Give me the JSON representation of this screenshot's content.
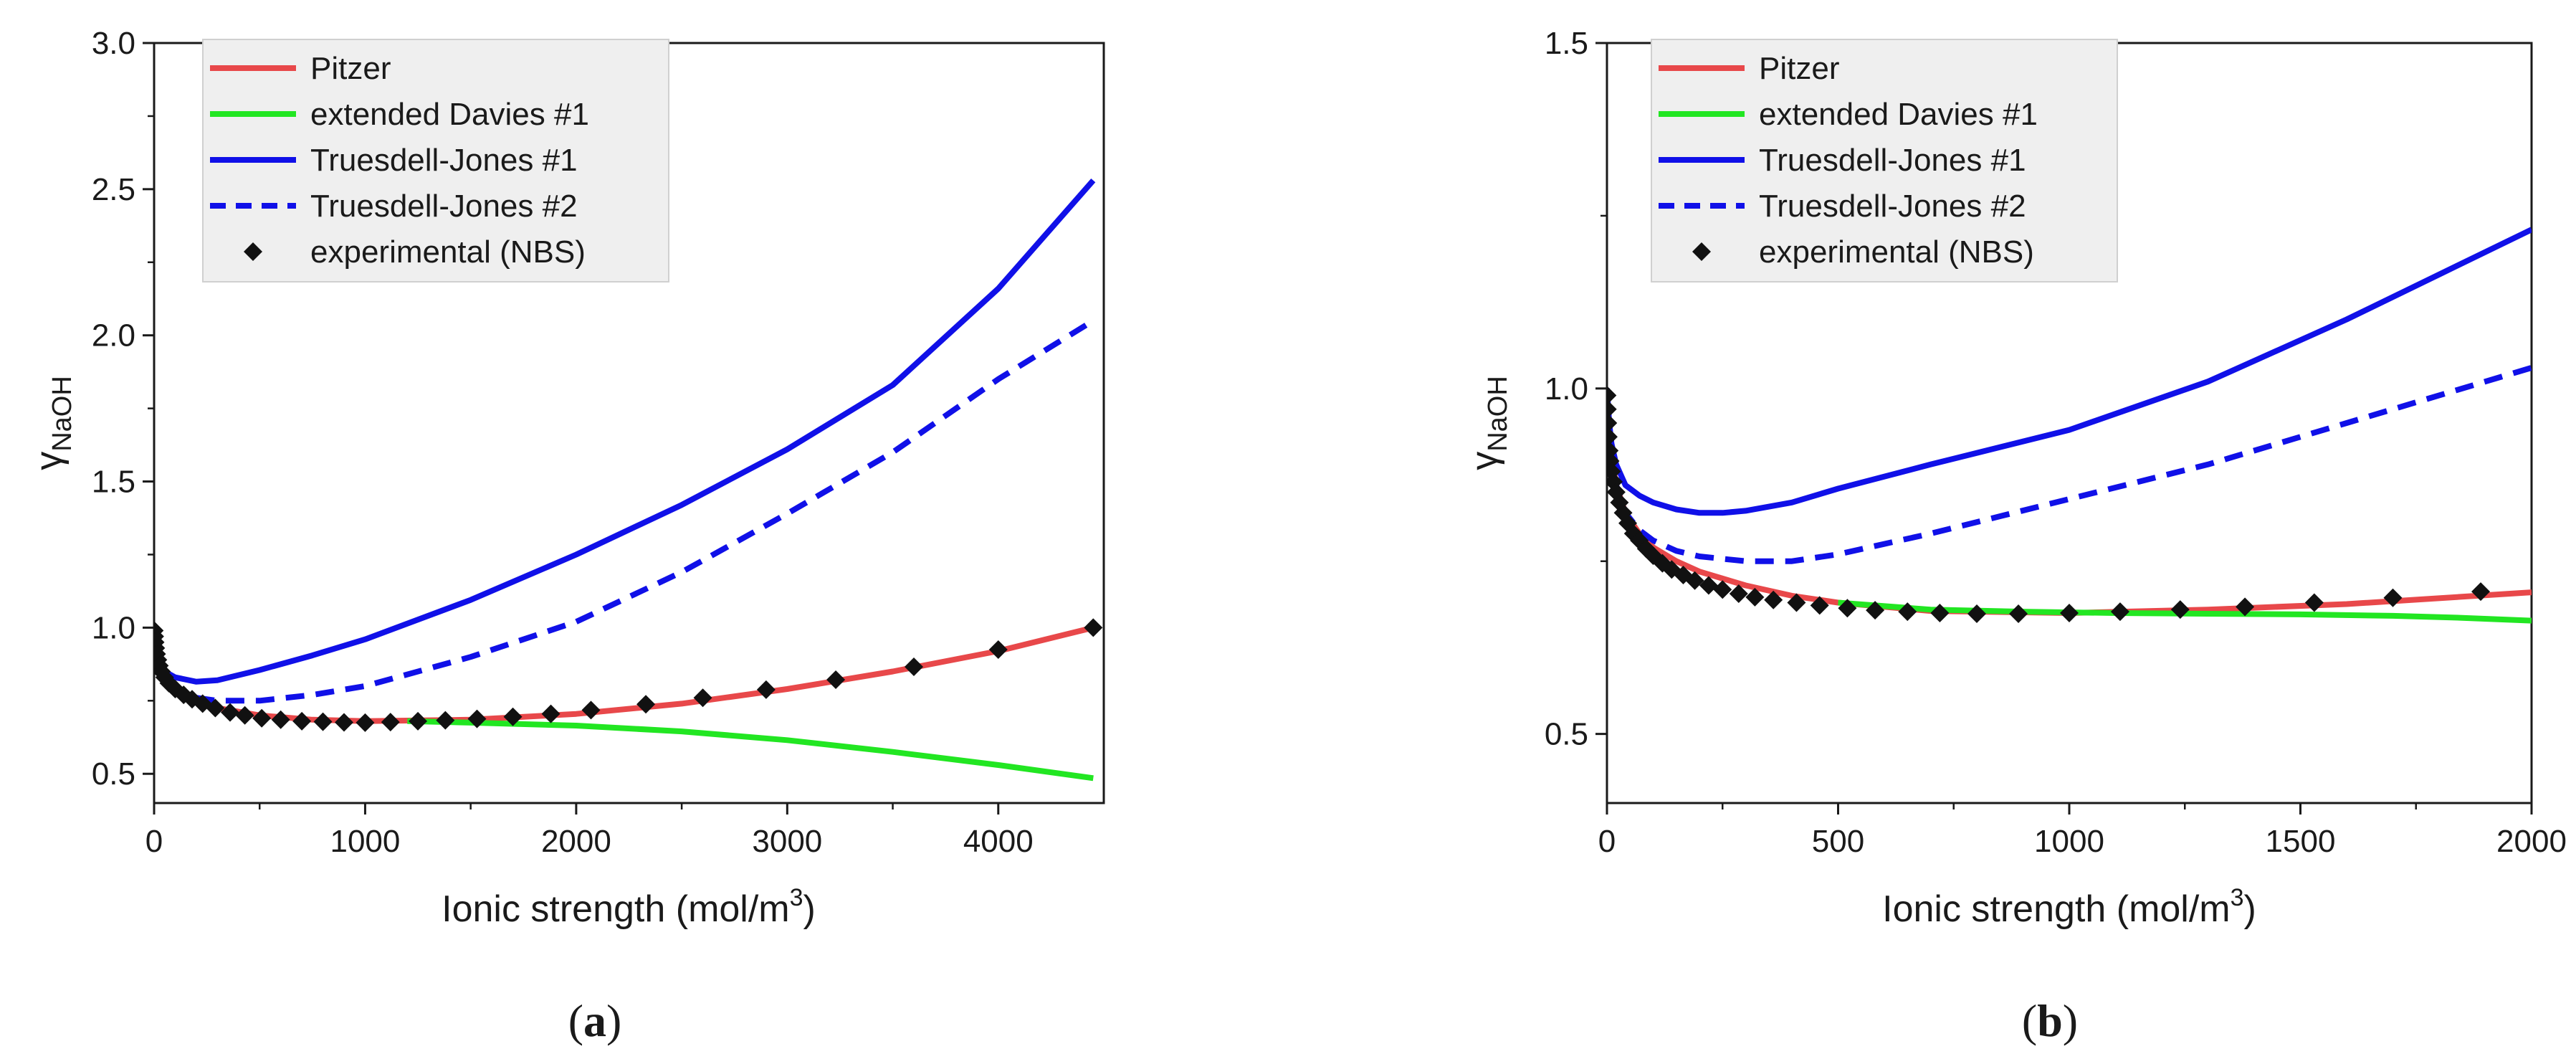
{
  "chart_data": [
    {
      "type": "line",
      "panel_label": "a",
      "xlabel": "Ionic strength (mol/m³)",
      "xlabel_main": "Ionic strength (mol/m",
      "xlabel_sup": "3",
      "xlabel_end": ")",
      "ylabel_main": "γ",
      "ylabel_sub": "NaOH",
      "xlim": [
        0,
        4500
      ],
      "ylim": [
        0.4,
        3.0
      ],
      "xticks": [
        "0",
        "1000",
        "2000",
        "3000",
        "4000"
      ],
      "xtick_values": [
        0,
        1000,
        2000,
        3000,
        4000
      ],
      "yticks": [
        "0.5",
        "1.0",
        "1.5",
        "2.0",
        "2.5",
        "3.0"
      ],
      "ytick_values": [
        0.5,
        1.0,
        1.5,
        2.0,
        2.5,
        3.0
      ],
      "legend_position": "top-left",
      "series": [
        {
          "name": "Pitzer",
          "color": "#e8484a",
          "dash": "solid",
          "x": [
            0,
            10,
            25,
            50,
            100,
            200,
            300,
            500,
            750,
            1000,
            1500,
            2000,
            2500,
            3000,
            3500,
            4000,
            4450
          ],
          "y": [
            1.0,
            0.9,
            0.86,
            0.82,
            0.78,
            0.745,
            0.725,
            0.7,
            0.685,
            0.68,
            0.685,
            0.705,
            0.74,
            0.79,
            0.85,
            0.92,
            1.0
          ]
        },
        {
          "name": "extended Davies #1",
          "color": "#22e622",
          "dash": "solid",
          "x": [
            1200,
            1500,
            2000,
            2500,
            3000,
            3500,
            4000,
            4450
          ],
          "y": [
            0.68,
            0.675,
            0.665,
            0.645,
            0.615,
            0.575,
            0.53,
            0.485
          ]
        },
        {
          "name": "Truesdell-Jones #1",
          "color": "#1010e8",
          "dash": "solid",
          "x": [
            0,
            10,
            25,
            50,
            100,
            200,
            300,
            500,
            750,
            1000,
            1500,
            2000,
            2500,
            3000,
            3500,
            4000,
            4450
          ],
          "y": [
            1.0,
            0.93,
            0.88,
            0.85,
            0.83,
            0.815,
            0.82,
            0.855,
            0.905,
            0.96,
            1.095,
            1.25,
            1.42,
            1.61,
            1.83,
            2.16,
            2.53
          ]
        },
        {
          "name": "Truesdell-Jones #2",
          "color": "#1010e8",
          "dash": "dashed",
          "x": [
            0,
            10,
            25,
            50,
            100,
            200,
            300,
            500,
            750,
            1000,
            1500,
            2000,
            2500,
            3000,
            3500,
            4000,
            4450
          ],
          "y": [
            1.0,
            0.9,
            0.86,
            0.82,
            0.79,
            0.76,
            0.75,
            0.75,
            0.77,
            0.8,
            0.9,
            1.02,
            1.19,
            1.39,
            1.6,
            1.85,
            2.05
          ]
        },
        {
          "name": "experimental (NBS)",
          "color": "#111111",
          "dash": "none",
          "marker": "diamond",
          "x": [
            1,
            3,
            5,
            8,
            12,
            18,
            25,
            35,
            50,
            70,
            100,
            140,
            180,
            230,
            290,
            360,
            430,
            510,
            600,
            700,
            800,
            900,
            1000,
            1120,
            1250,
            1380,
            1530,
            1700,
            1880,
            2070,
            2330,
            2600,
            2900,
            3230,
            3600,
            4000,
            4450
          ],
          "y": [
            0.99,
            0.97,
            0.95,
            0.93,
            0.91,
            0.89,
            0.87,
            0.85,
            0.83,
            0.81,
            0.79,
            0.77,
            0.755,
            0.74,
            0.725,
            0.71,
            0.7,
            0.69,
            0.685,
            0.68,
            0.678,
            0.676,
            0.675,
            0.677,
            0.68,
            0.683,
            0.688,
            0.695,
            0.705,
            0.718,
            0.738,
            0.76,
            0.788,
            0.822,
            0.866,
            0.925,
            1.0
          ]
        }
      ]
    },
    {
      "type": "line",
      "panel_label": "b",
      "xlabel": "Ionic strength (mol/m³)",
      "xlabel_main": "Ionic strength (mol/m",
      "xlabel_sup": "3",
      "xlabel_end": ")",
      "ylabel_main": "γ",
      "ylabel_sub": "NaOH",
      "xlim": [
        0,
        2000
      ],
      "ylim": [
        0.4,
        1.5
      ],
      "xticks": [
        "0",
        "500",
        "1000",
        "1500",
        "2000"
      ],
      "xtick_values": [
        0,
        500,
        1000,
        1500,
        2000
      ],
      "yticks": [
        "0.5",
        "1.0",
        "1.5"
      ],
      "ytick_values": [
        0.5,
        1.0,
        1.5
      ],
      "legend_position": "top-left",
      "series": [
        {
          "name": "Pitzer",
          "color": "#e8484a",
          "dash": "solid",
          "x": [
            0,
            5,
            10,
            20,
            40,
            70,
            100,
            150,
            200,
            300,
            400,
            500,
            700,
            1000,
            1300,
            1600,
            2000
          ],
          "y": [
            1.0,
            0.93,
            0.9,
            0.86,
            0.82,
            0.79,
            0.77,
            0.75,
            0.735,
            0.715,
            0.7,
            0.69,
            0.678,
            0.675,
            0.68,
            0.688,
            0.705
          ]
        },
        {
          "name": "extended Davies #1",
          "color": "#22e622",
          "dash": "solid",
          "x": [
            500,
            700,
            900,
            1100,
            1300,
            1500,
            1700,
            1850,
            2000
          ],
          "y": [
            0.69,
            0.68,
            0.677,
            0.675,
            0.674,
            0.673,
            0.671,
            0.668,
            0.664
          ]
        },
        {
          "name": "Truesdell-Jones #1",
          "color": "#1010e8",
          "dash": "solid",
          "x": [
            0,
            5,
            10,
            20,
            40,
            70,
            100,
            150,
            200,
            250,
            300,
            400,
            500,
            700,
            1000,
            1300,
            1600,
            2000
          ],
          "y": [
            1.0,
            0.95,
            0.92,
            0.89,
            0.86,
            0.845,
            0.835,
            0.825,
            0.82,
            0.82,
            0.823,
            0.835,
            0.855,
            0.89,
            0.94,
            1.01,
            1.1,
            1.23
          ]
        },
        {
          "name": "Truesdell-Jones #2",
          "color": "#1010e8",
          "dash": "dashed",
          "x": [
            0,
            5,
            10,
            20,
            40,
            70,
            100,
            150,
            200,
            300,
            400,
            500,
            700,
            1000,
            1300,
            1600,
            2000
          ],
          "y": [
            1.0,
            0.93,
            0.9,
            0.86,
            0.82,
            0.795,
            0.78,
            0.765,
            0.757,
            0.75,
            0.75,
            0.76,
            0.79,
            0.84,
            0.89,
            0.95,
            1.03
          ]
        },
        {
          "name": "experimental (NBS)",
          "color": "#111111",
          "dash": "none",
          "marker": "diamond",
          "x": [
            0.5,
            1,
            2,
            3,
            5,
            7,
            10,
            14,
            20,
            27,
            35,
            45,
            57,
            70,
            85,
            100,
            120,
            140,
            165,
            190,
            220,
            250,
            285,
            320,
            360,
            410,
            460,
            520,
            580,
            650,
            720,
            800,
            890,
            1000,
            1110,
            1240,
            1380,
            1530,
            1700,
            1890
          ],
          "y": [
            0.99,
            0.97,
            0.95,
            0.93,
            0.91,
            0.895,
            0.88,
            0.865,
            0.85,
            0.835,
            0.82,
            0.805,
            0.79,
            0.78,
            0.768,
            0.758,
            0.747,
            0.738,
            0.73,
            0.722,
            0.715,
            0.709,
            0.703,
            0.698,
            0.694,
            0.69,
            0.686,
            0.682,
            0.679,
            0.677,
            0.675,
            0.674,
            0.674,
            0.675,
            0.677,
            0.68,
            0.684,
            0.69,
            0.697,
            0.706
          ]
        }
      ]
    }
  ]
}
